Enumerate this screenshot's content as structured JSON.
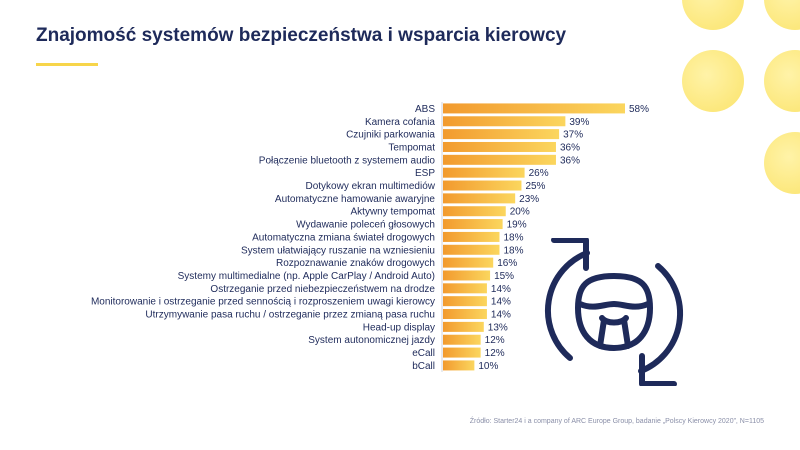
{
  "header": {
    "title": "Znajomość systemów bezpieczeństwa i wsparcia kierowcy"
  },
  "footer": {
    "source": "Źródło: Starter24 i a company of ARC Europe Group, badanie „Polscy Kierowcy 2020”, N=1105"
  },
  "colors": {
    "title": "#1e2a5a",
    "accent_yellow": "#f7d54a",
    "bar_dark": "#f29a2e",
    "bar_light": "#fbd65e",
    "wheel_icon": "#1e2a5a"
  },
  "decor": {
    "icon": "steering-wheel-refresh-icon"
  },
  "chart_data": {
    "type": "bar",
    "orientation": "horizontal",
    "title": "Znajomość systemów bezpieczeństwa i wsparcia kierowcy",
    "xlabel": "",
    "ylabel": "",
    "xlim": [
      0,
      58
    ],
    "grid": false,
    "legend": "none",
    "categories": [
      "ABS",
      "Kamera cofania",
      "Czujniki parkowania",
      "Tempomat",
      "Połączenie bluetooth z systemem audio",
      "ESP",
      "Dotykowy ekran multimediów",
      "Automatyczne hamowanie awaryjne",
      "Aktywny tempomat",
      "Wydawanie poleceń głosowych",
      "Automatyczna zmiana świateł drogowych",
      "System ułatwiający ruszanie na wzniesieniu",
      "Rozpoznawanie znaków drogowych",
      "Systemy multimedialne (np. Apple CarPlay / Android Auto)",
      "Ostrzeganie przed niebezpieczeństwem na drodze",
      "Monitorowanie i ostrzeganie przed sennością i rozproszeniem uwagi kierowcy",
      "Utrzymywanie pasa ruchu / ostrzeganie przez zmianą pasa ruchu",
      "Head-up display",
      "System autonomicznej jazdy",
      "eCall",
      "bCall"
    ],
    "values": [
      58,
      39,
      37,
      36,
      36,
      26,
      25,
      23,
      20,
      19,
      18,
      18,
      16,
      15,
      14,
      14,
      14,
      13,
      12,
      12,
      10
    ],
    "value_labels": [
      "58%",
      "39%",
      "37%",
      "36%",
      "36%",
      "26%",
      "25%",
      "23%",
      "20%",
      "19%",
      "18%",
      "18%",
      "16%",
      "15%",
      "14%",
      "14%",
      "14%",
      "13%",
      "12%",
      "12%",
      "10%"
    ]
  }
}
